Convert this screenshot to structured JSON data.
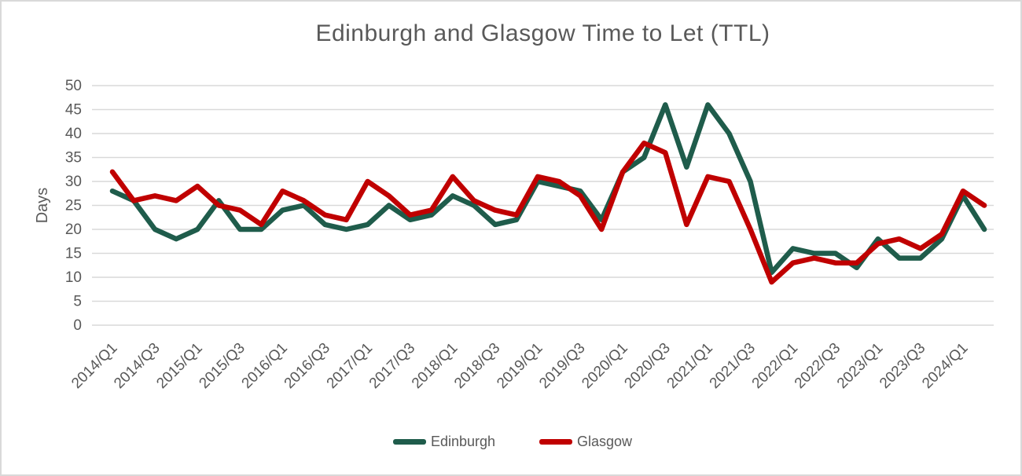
{
  "title": "Edinburgh and Glasgow Time to Let (TTL)",
  "y_axis": {
    "label": "Days",
    "min": 0,
    "max": 50,
    "step": 5
  },
  "x_axis": {
    "tick_interval": 2,
    "first_tick": "2014/Q1",
    "last_tick": "2024/Q1"
  },
  "legend": {
    "items": [
      "Edinburgh",
      "Glasgow"
    ],
    "position": "bottom"
  },
  "colors": {
    "edinburgh": "#1f5c4b",
    "glasgow": "#c00000",
    "gridline": "#d9d9d9",
    "text": "#595959",
    "background": "#ffffff"
  },
  "chart_data": {
    "type": "line",
    "title": "Edinburgh and Glasgow Time to Let (TTL)",
    "xlabel": "",
    "ylabel": "Days",
    "ylim": [
      0,
      50
    ],
    "y_tick_step": 5,
    "grid": "horizontal",
    "legend_position": "bottom",
    "x_tick_every": 2,
    "categories": [
      "2014/Q1",
      "2014/Q2",
      "2014/Q3",
      "2014/Q4",
      "2015/Q1",
      "2015/Q2",
      "2015/Q3",
      "2015/Q4",
      "2016/Q1",
      "2016/Q2",
      "2016/Q3",
      "2016/Q4",
      "2017/Q1",
      "2017/Q2",
      "2017/Q3",
      "2017/Q4",
      "2018/Q1",
      "2018/Q2",
      "2018/Q3",
      "2018/Q4",
      "2019/Q1",
      "2019/Q2",
      "2019/Q3",
      "2019/Q4",
      "2020/Q1",
      "2020/Q2",
      "2020/Q3",
      "2020/Q4",
      "2021/Q1",
      "2021/Q2",
      "2021/Q3",
      "2021/Q4",
      "2022/Q1",
      "2022/Q2",
      "2022/Q3",
      "2022/Q4",
      "2023/Q1",
      "2023/Q2",
      "2023/Q3",
      "2023/Q4",
      "2024/Q1",
      "2024/Q2"
    ],
    "series": [
      {
        "name": "Edinburgh",
        "color": "#1f5c4b",
        "values": [
          28,
          26,
          20,
          18,
          20,
          26,
          20,
          20,
          24,
          25,
          21,
          20,
          21,
          25,
          22,
          23,
          27,
          25,
          21,
          22,
          30,
          29,
          28,
          22,
          32,
          35,
          46,
          33,
          46,
          40,
          30,
          11,
          16,
          15,
          15,
          12,
          18,
          14,
          14,
          18,
          27,
          20
        ]
      },
      {
        "name": "Glasgow",
        "color": "#c00000",
        "values": [
          32,
          26,
          27,
          26,
          29,
          25,
          24,
          21,
          28,
          26,
          23,
          22,
          30,
          27,
          23,
          24,
          31,
          26,
          24,
          23,
          31,
          30,
          27,
          20,
          32,
          38,
          36,
          21,
          31,
          30,
          20,
          9,
          13,
          14,
          13,
          13,
          17,
          18,
          16,
          19,
          28,
          25
        ]
      }
    ]
  }
}
